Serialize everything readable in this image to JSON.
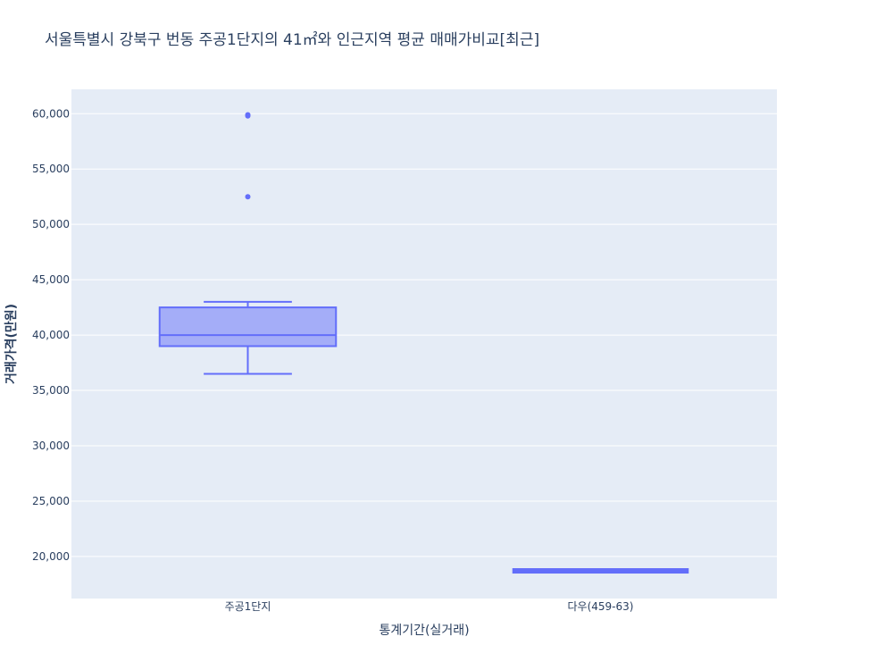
{
  "chart_data": {
    "type": "box",
    "title": "서울특별시 강북구 번동 주공1단지의 41㎡와 인근지역 평균 매매가비교[최근]",
    "xlabel": "통계기간(실거래)",
    "ylabel": "거래가격(만원)",
    "ylim": [
      16200,
      62200
    ],
    "yticks": [
      20000,
      25000,
      30000,
      35000,
      40000,
      45000,
      50000,
      55000,
      60000
    ],
    "ytick_labels": [
      "20,000",
      "25,000",
      "30,000",
      "35,000",
      "40,000",
      "45,000",
      "50,000",
      "55,000",
      "60,000"
    ],
    "categories": [
      "주공1단지",
      "다우(459-63)"
    ],
    "grid": true,
    "boxes": [
      {
        "category": "주공1단지",
        "min": 36500,
        "q1": 39000,
        "median": 40000,
        "q3": 42500,
        "max": 43000,
        "outliers": [
          52500,
          59800,
          59900
        ]
      },
      {
        "category": "다우(459-63)",
        "min": 18700,
        "q1": 18700,
        "median": 18700,
        "q3": 18700,
        "max": 18700,
        "outliers": []
      }
    ],
    "colors": {
      "box_line": "#636efa",
      "box_fill": "rgba(99,110,250,0.5)",
      "plot_bg": "#e5ecf6",
      "grid": "#ffffff",
      "text": "#2a3f5f"
    }
  }
}
